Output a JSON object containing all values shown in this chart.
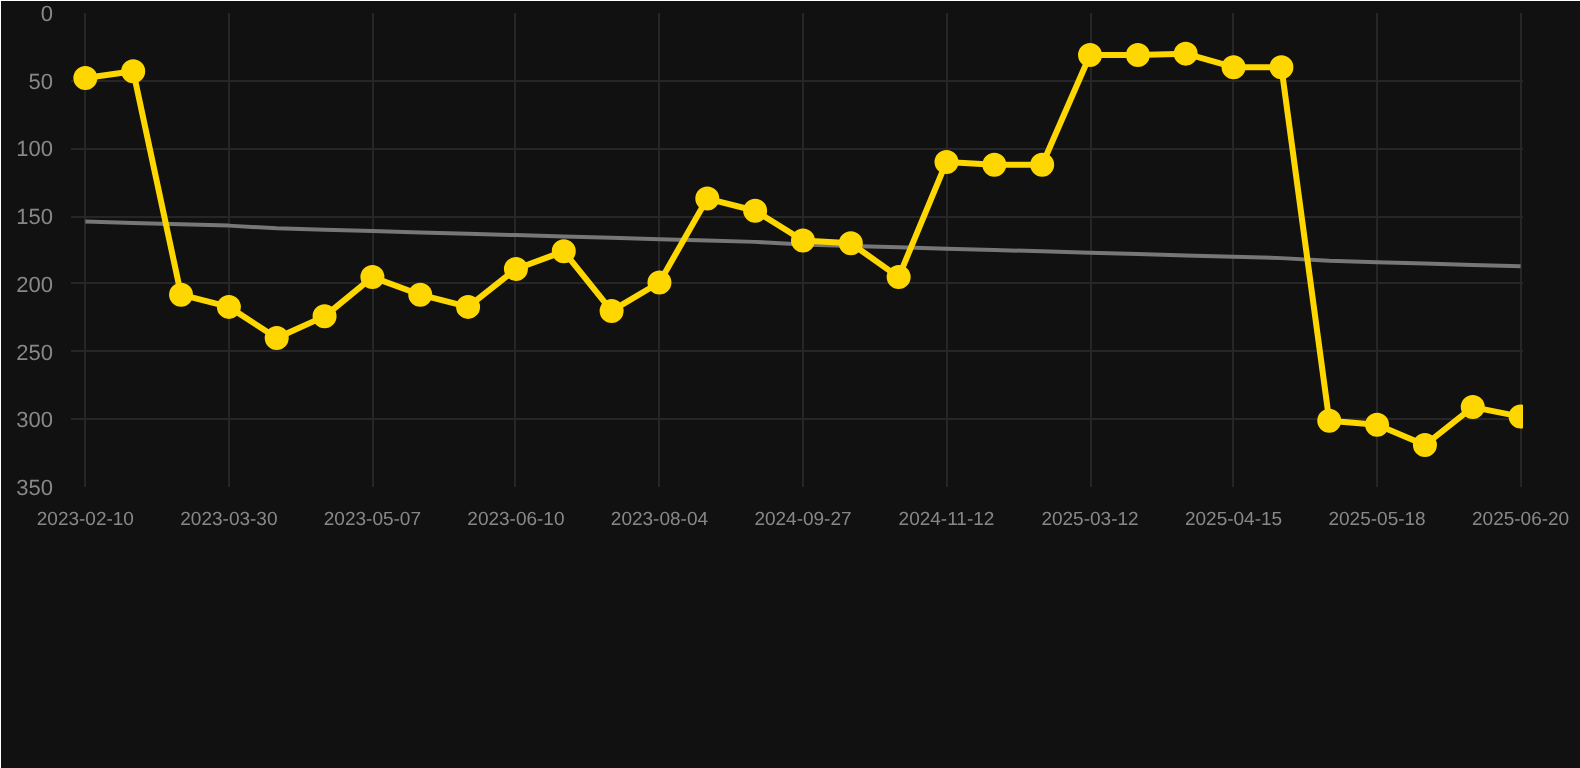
{
  "chart_data": {
    "type": "line",
    "categories": [
      "2023-02-10",
      null,
      null,
      "2023-03-30",
      null,
      null,
      "2023-05-07",
      null,
      null,
      "2023-06-10",
      null,
      null,
      "2023-08-04",
      null,
      null,
      "2024-09-27",
      null,
      null,
      "2024-11-12",
      null,
      null,
      "2025-03-12",
      null,
      null,
      "2025-04-15",
      null,
      null,
      "2025-05-18",
      null,
      null,
      "2025-06-20"
    ],
    "series": [
      {
        "color": "#ffd700",
        "marker": "circle",
        "values": [
          48,
          43,
          208,
          217,
          240,
          224,
          195,
          208,
          217,
          189,
          176,
          220,
          199,
          137,
          146,
          168,
          170,
          195,
          110,
          112,
          112,
          31,
          31,
          30,
          40,
          40,
          301,
          304,
          319,
          291,
          298
        ]
      },
      {
        "type": "line",
        "color": "#777777",
        "marker": "none",
        "values": [
          154,
          155,
          156,
          157,
          159,
          160,
          161,
          162,
          163,
          164,
          165,
          166,
          167,
          168,
          169,
          171,
          172,
          173,
          174,
          175,
          176,
          177,
          178,
          179,
          180,
          181,
          183,
          184,
          185,
          186,
          187
        ]
      }
    ],
    "ylim": [
      350,
      0
    ],
    "yticks": [
      0,
      50,
      100,
      150,
      200,
      250,
      300,
      350
    ],
    "grid": true
  }
}
